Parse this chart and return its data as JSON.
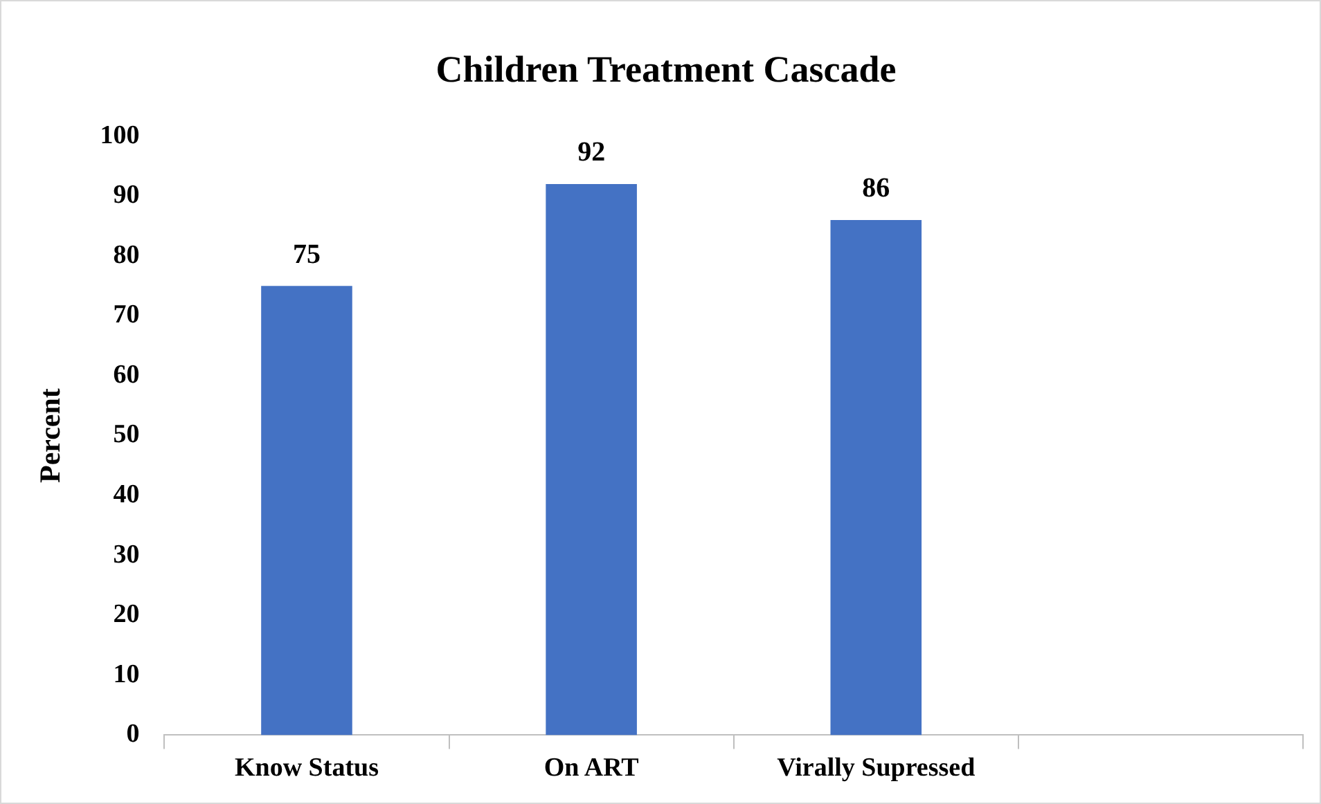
{
  "chart_data": {
    "type": "bar",
    "title": "Children Treatment Cascade",
    "ylabel": "Percent",
    "categories": [
      "Know Status",
      "On ART",
      "Virally Supressed",
      null
    ],
    "values": [
      75,
      92,
      86,
      null
    ],
    "color": "#4472c4",
    "ylim": [
      0,
      100
    ],
    "yticks": [
      0,
      10,
      20,
      30,
      40,
      50,
      60,
      70,
      80,
      90,
      100
    ],
    "grid": false,
    "legend": false,
    "data_labels": true
  }
}
